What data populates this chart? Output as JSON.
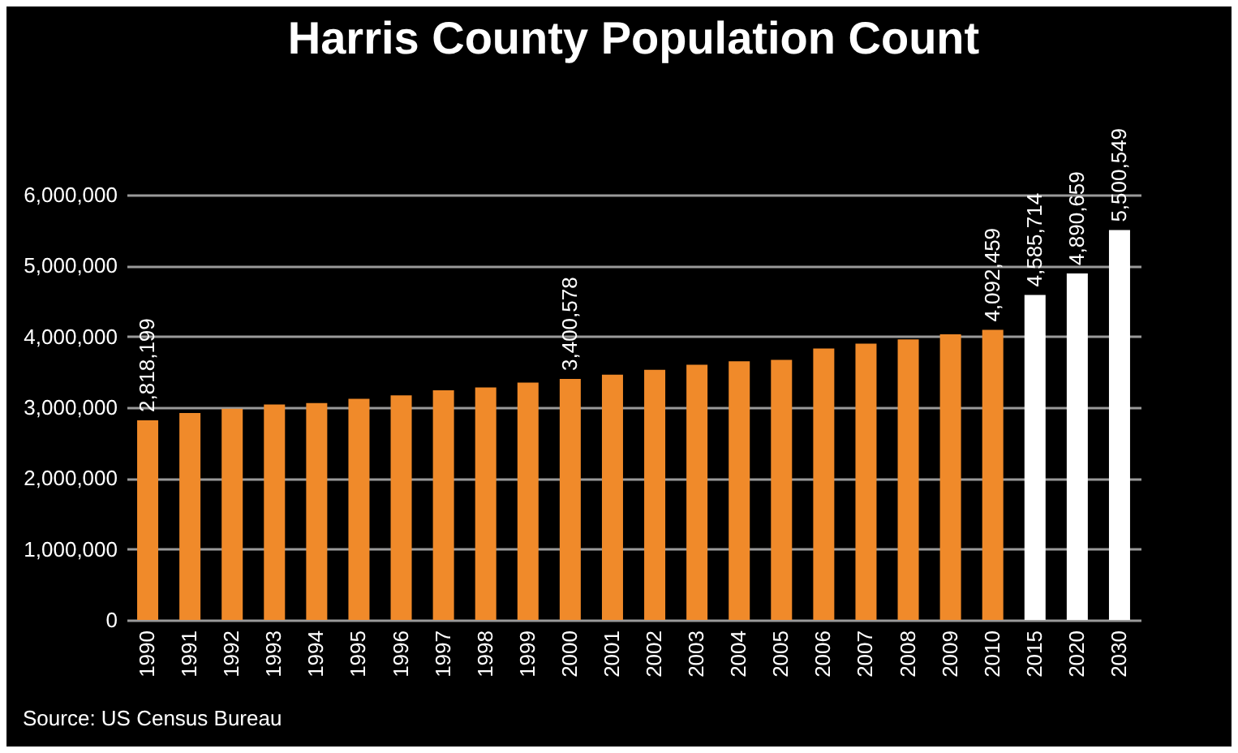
{
  "chart_data": {
    "type": "bar",
    "title": "Harris County Population Count",
    "categories": [
      "1990",
      "1991",
      "1992",
      "1993",
      "1994",
      "1995",
      "1996",
      "1997",
      "1998",
      "1999",
      "2000",
      "2001",
      "2002",
      "2003",
      "2004",
      "2005",
      "2006",
      "2007",
      "2008",
      "2009",
      "2010",
      "2015",
      "2020",
      "2030"
    ],
    "values": [
      2818199,
      2920000,
      2980000,
      3040000,
      3060000,
      3120000,
      3170000,
      3240000,
      3280000,
      3350000,
      3400578,
      3460000,
      3530000,
      3600000,
      3650000,
      3670000,
      3830000,
      3900000,
      3960000,
      4030000,
      4092459,
      4585714,
      4890659,
      5500549
    ],
    "colors": [
      "#f08a2a",
      "#f08a2a",
      "#f08a2a",
      "#f08a2a",
      "#f08a2a",
      "#f08a2a",
      "#f08a2a",
      "#f08a2a",
      "#f08a2a",
      "#f08a2a",
      "#f08a2a",
      "#f08a2a",
      "#f08a2a",
      "#f08a2a",
      "#f08a2a",
      "#f08a2a",
      "#f08a2a",
      "#f08a2a",
      "#f08a2a",
      "#f08a2a",
      "#f08a2a",
      "#ffffff",
      "#ffffff",
      "#ffffff"
    ],
    "value_labels": [
      "2,818,199",
      null,
      null,
      null,
      null,
      null,
      null,
      null,
      null,
      null,
      "3,400,578",
      null,
      null,
      null,
      null,
      null,
      null,
      null,
      null,
      null,
      "4,092,459",
      "4,585,714",
      "4,890,659",
      "5,500,549"
    ],
    "ylim": [
      0,
      6000000
    ],
    "yticks": [
      0,
      {
        "value": 1000000,
        "label": "1,000,000"
      },
      {
        "value": 2000000,
        "label": "2,000,000"
      },
      {
        "value": 3000000,
        "label": "3,000,000"
      },
      {
        "value": 4000000,
        "label": "4,000,000"
      },
      {
        "value": 5000000,
        "label": "5,000,000"
      },
      {
        "value": 6000000,
        "label": "6,000,000"
      }
    ],
    "grid": "y",
    "annotations": [
      "Source: US Census Bureau"
    ]
  }
}
